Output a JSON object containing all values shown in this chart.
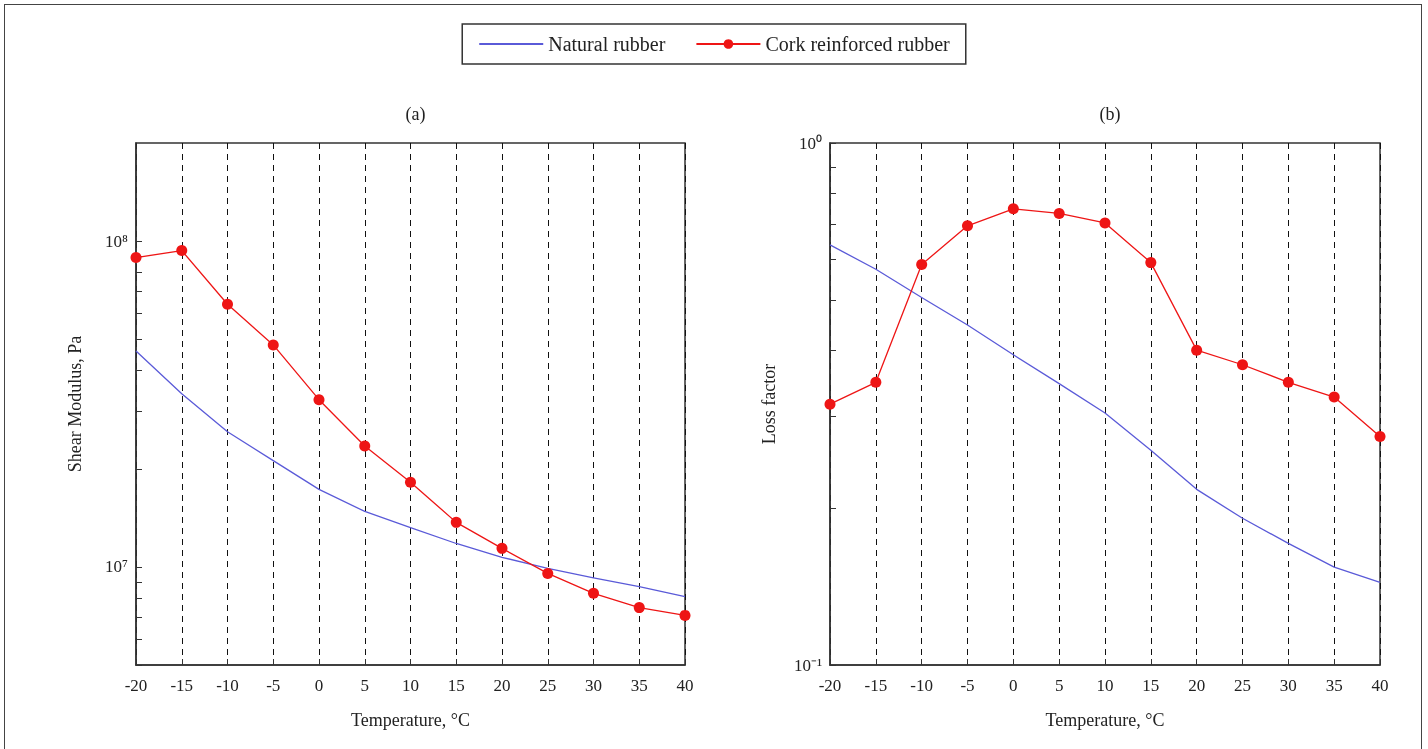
{
  "chart_data": [
    {
      "type": "line",
      "title": "(a)",
      "xlabel": "Temperature, °C",
      "ylabel": "Shear Modulus, Pa",
      "log": "y",
      "grid": "x",
      "legend": "top",
      "line_style": "solid",
      "x": [
        -20,
        -15,
        -10,
        -5,
        0,
        5,
        10,
        15,
        20,
        25,
        30,
        35,
        40
      ],
      "xlim": [
        -20,
        40
      ],
      "xticks": [
        -20,
        -15,
        -10,
        -5,
        0,
        5,
        10,
        15,
        20,
        25,
        30,
        35,
        40
      ],
      "ylim": [
        5000000,
        200000000
      ],
      "yticks": [
        {
          "value": 5000000,
          "label": null
        },
        {
          "value": 6000000,
          "label": null
        },
        {
          "value": 7000000,
          "label": null
        },
        {
          "value": 8000000,
          "label": null
        },
        {
          "value": 9000000,
          "label": null
        },
        {
          "value": 10000000,
          "label": "10⁷"
        },
        {
          "value": 20000000,
          "label": null
        },
        {
          "value": 30000000,
          "label": null
        },
        {
          "value": 40000000,
          "label": null
        },
        {
          "value": 50000000,
          "label": null
        },
        {
          "value": 60000000,
          "label": null
        },
        {
          "value": 70000000,
          "label": null
        },
        {
          "value": 80000000,
          "label": null
        },
        {
          "value": 90000000,
          "label": null
        },
        {
          "value": 100000000,
          "label": "10⁸"
        }
      ],
      "series": [
        {
          "name": "Natural rubber",
          "color": "#5a5ad8",
          "marker": "none",
          "values": [
            46000000,
            34000000,
            26000000,
            21200000,
            17300000,
            14800000,
            13200000,
            11800000,
            10700000,
            9900000,
            9250000,
            8700000,
            8100000
          ]
        },
        {
          "name": "Cork reinforced rubber",
          "color": "#ee1515",
          "marker": "circle",
          "values": [
            89000000,
            93500000,
            64000000,
            48000000,
            32600000,
            23500000,
            18200000,
            13700000,
            11400000,
            9550000,
            8300000,
            7500000,
            7100000
          ]
        }
      ]
    },
    {
      "type": "line",
      "title": "(b)",
      "xlabel": "Temperature, °C",
      "ylabel": "Loss factor",
      "log": "y",
      "grid": "x",
      "legend": false,
      "line_style": "solid",
      "x": [
        -20,
        -15,
        -10,
        -5,
        0,
        5,
        10,
        15,
        20,
        25,
        30,
        35,
        40
      ],
      "xlim": [
        -20,
        40
      ],
      "xticks": [
        -20,
        -15,
        -10,
        -5,
        0,
        5,
        10,
        15,
        20,
        25,
        30,
        35,
        40
      ],
      "ylim": [
        0.1,
        1
      ],
      "yticks": [
        {
          "value": 0.1,
          "label": "10⁻¹"
        },
        {
          "value": 0.2,
          "label": null
        },
        {
          "value": 0.3,
          "label": null
        },
        {
          "value": 0.4,
          "label": null
        },
        {
          "value": 0.5,
          "label": null
        },
        {
          "value": 0.6,
          "label": null
        },
        {
          "value": 0.7,
          "label": null
        },
        {
          "value": 0.8,
          "label": null
        },
        {
          "value": 0.9,
          "label": null
        },
        {
          "value": 1,
          "label": "10⁰"
        }
      ],
      "series": [
        {
          "color": "#5a5ad8",
          "marker": "none",
          "values": [
            0.638,
            0.573,
            0.506,
            0.448,
            0.393,
            0.346,
            0.304,
            0.258,
            0.217,
            0.191,
            0.171,
            0.154,
            0.144
          ]
        },
        {
          "color": "#ee1515",
          "marker": "circle",
          "values": [
            0.316,
            0.348,
            0.585,
            0.694,
            0.748,
            0.733,
            0.703,
            0.59,
            0.401,
            0.376,
            0.348,
            0.326,
            0.274
          ]
        }
      ]
    }
  ]
}
